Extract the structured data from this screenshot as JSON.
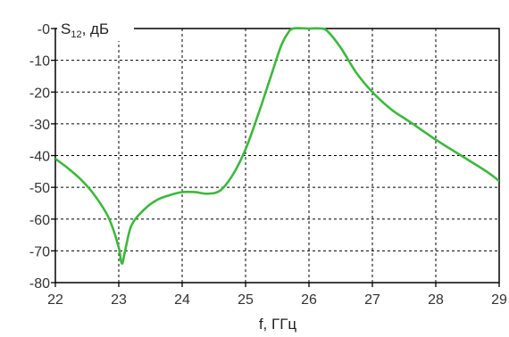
{
  "chart_data": {
    "type": "line",
    "ylabel_main": "S",
    "ylabel_sub": "12",
    "ylabel_unit": ", дБ",
    "xlabel": "f, ГГц",
    "xlim": [
      22,
      29
    ],
    "ylim": [
      -80,
      0
    ],
    "x_ticks": [
      "22",
      "23",
      "24",
      "25",
      "26",
      "27",
      "28",
      "29"
    ],
    "y_ticks": [
      "-0",
      "-10",
      "-20",
      "-30",
      "-40",
      "-50",
      "-60",
      "-70",
      "-80"
    ],
    "grid": true,
    "series": [
      {
        "color": "#3db83d",
        "x": [
          22.0,
          22.2,
          22.4,
          22.6,
          22.8,
          22.9,
          23.0,
          23.05,
          23.1,
          23.2,
          23.4,
          23.6,
          23.8,
          24.0,
          24.2,
          24.4,
          24.6,
          24.8,
          25.0,
          25.2,
          25.4,
          25.55,
          25.65,
          25.75,
          26.0,
          26.2,
          26.3,
          26.5,
          26.75,
          27.0,
          27.3,
          27.6,
          28.0,
          28.4,
          28.8,
          29.0
        ],
        "values": [
          -41,
          -44,
          -47.5,
          -52,
          -58,
          -62.5,
          -69,
          -74,
          -70,
          -62,
          -57,
          -54,
          -52.5,
          -51.5,
          -51.5,
          -52,
          -51,
          -46,
          -38,
          -27,
          -15,
          -6,
          -2,
          0,
          0,
          0,
          -1,
          -6,
          -14,
          -20,
          -25.5,
          -29.5,
          -35,
          -40,
          -45,
          -48
        ]
      }
    ]
  }
}
